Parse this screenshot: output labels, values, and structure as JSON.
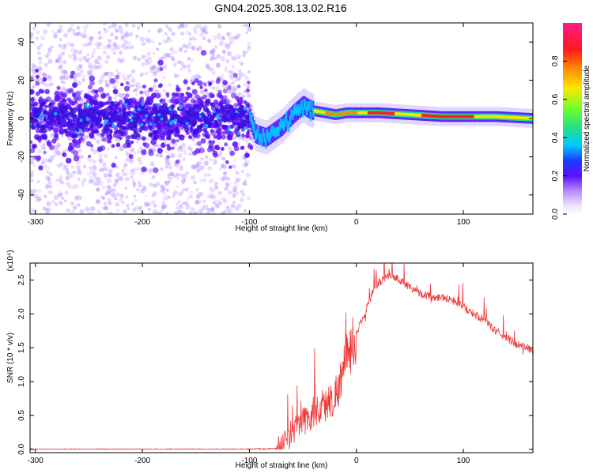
{
  "page_title": "GN04.2025.308.13.02.R16",
  "colors": {
    "snr_line": "#f03a3a",
    "colormap": [
      "#ffffff",
      "#e9ddff",
      "#b58cff",
      "#6a1bff",
      "#3a10e0",
      "#1a3cff",
      "#00c8ff",
      "#22e08a",
      "#6fff2a",
      "#ffe600",
      "#ff8a00",
      "#ff1a1a",
      "#ff1a8c"
    ]
  },
  "chart_data": [
    {
      "type": "heatmap",
      "title": "GN04.2025.308.13.02.R16",
      "xlabel": "Height of straight line (km)",
      "ylabel": "Frequency (Hz)",
      "xlim": [
        -305,
        165
      ],
      "ylim": [
        -50,
        50
      ],
      "xticks": [
        -300,
        -200,
        -100,
        0,
        100
      ],
      "yticks": [
        -40,
        -20,
        0,
        20,
        40
      ],
      "colorbar": {
        "label": "Normalized spectral amplitude",
        "range": [
          0.0,
          1.0
        ],
        "ticks": [
          "0.0",
          "0.2",
          "0.4",
          "0.6",
          "0.8"
        ]
      },
      "ridge": {
        "x": [
          -305,
          -100,
          -95,
          -85,
          -70,
          -60,
          -50,
          -45,
          -40,
          -30,
          -20,
          -10,
          0,
          20,
          50,
          80,
          100,
          130,
          165
        ],
        "freq": [
          0,
          0,
          -8,
          -10,
          -4,
          2,
          7,
          5,
          4,
          3,
          2,
          3,
          3,
          3,
          2,
          1,
          1,
          1,
          0
        ]
      }
    },
    {
      "type": "line",
      "xlabel": "Height of straight line (km)",
      "ylabel": "SNR (10 * v/v)",
      "y_multiplier": "(x10⁴)",
      "xlim": [
        -305,
        165
      ],
      "ylim": [
        -0.05,
        2.75
      ],
      "xticks": [
        -300,
        -200,
        -100,
        0,
        100
      ],
      "yticks": [
        0.0,
        0.5,
        1.0,
        1.5,
        2.0,
        2.5
      ],
      "series": [
        {
          "x": [
            -305,
            -200,
            -100,
            -75,
            -70,
            -65,
            -60,
            -55,
            -50,
            -45,
            -40,
            -35,
            -30,
            -25,
            -20,
            -15,
            -10,
            -5,
            0,
            5,
            10,
            15,
            20,
            25,
            30,
            35,
            40,
            50,
            60,
            70,
            80,
            90,
            100,
            110,
            120,
            130,
            140,
            150,
            160,
            165
          ],
          "values": [
            0.0,
            0.0,
            0.0,
            0.01,
            0.05,
            0.15,
            0.25,
            0.35,
            0.4,
            0.45,
            0.55,
            0.6,
            0.65,
            0.7,
            0.8,
            1.0,
            1.3,
            1.5,
            1.7,
            1.9,
            2.1,
            2.3,
            2.45,
            2.5,
            2.55,
            2.55,
            2.5,
            2.4,
            2.3,
            2.25,
            2.25,
            2.2,
            2.1,
            2.0,
            1.9,
            1.75,
            1.65,
            1.55,
            1.5,
            1.45
          ]
        }
      ]
    }
  ]
}
